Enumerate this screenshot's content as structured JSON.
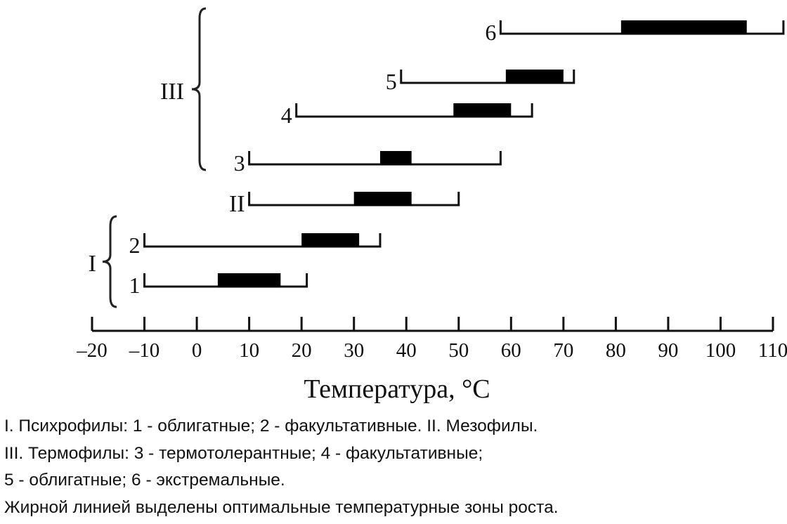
{
  "chart_data": {
    "type": "range-bar",
    "xlabel": "Температура, °C",
    "xlim": [
      -20,
      110
    ],
    "x_ticks": [
      -20,
      -10,
      0,
      10,
      20,
      30,
      40,
      50,
      60,
      70,
      80,
      90,
      100,
      110
    ],
    "x_tick_labels": [
      "–20",
      "–10",
      "0",
      "10",
      "20",
      "30",
      "40",
      "50",
      "60",
      "70",
      "80",
      "90",
      "100",
      "110"
    ],
    "rows": [
      {
        "label": "1",
        "range": [
          -10,
          21
        ],
        "optimum": [
          4,
          16
        ]
      },
      {
        "label": "2",
        "range": [
          -10,
          35
        ],
        "optimum": [
          20,
          31
        ]
      },
      {
        "label": "II",
        "range": [
          10,
          50
        ],
        "optimum": [
          30,
          41
        ]
      },
      {
        "label": "3",
        "range": [
          10,
          58
        ],
        "optimum": [
          35,
          41
        ]
      },
      {
        "label": "4",
        "range": [
          19,
          64
        ],
        "optimum": [
          49,
          60
        ]
      },
      {
        "label": "5",
        "range": [
          39,
          72
        ],
        "optimum": [
          59,
          70
        ]
      },
      {
        "label": "6",
        "range": [
          58,
          112
        ],
        "optimum": [
          81,
          105
        ]
      }
    ],
    "groups": [
      {
        "label": "I",
        "rows": [
          "1",
          "2"
        ]
      },
      {
        "label": "III",
        "rows": [
          "3",
          "4",
          "5",
          "6"
        ]
      }
    ]
  },
  "caption": {
    "line1": "I. Психрофилы: 1 - облигатные; 2 - факультативные. II. Мезофилы.",
    "line2": "III. Термофилы: 3 - термотолерантные; 4 - факультативные;",
    "line3": "5 - облигатные; 6 - экстремальные.",
    "line4": "Жирной линией выделены оптимальные температурные зоны роста."
  }
}
